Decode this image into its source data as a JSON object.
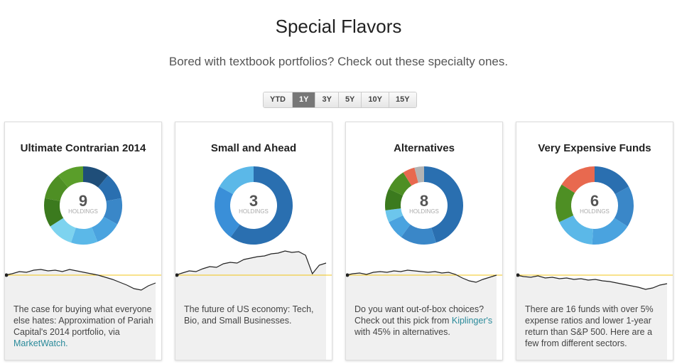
{
  "header": {
    "title": "Special Flavors",
    "subtitle": "Bored with textbook portfolios? Check out these specialty ones."
  },
  "periods": {
    "options": [
      "YTD",
      "1Y",
      "3Y",
      "5Y",
      "10Y",
      "15Y"
    ],
    "selected": 1
  },
  "sparkline_ylim": [
    -24,
    36
  ],
  "cards": [
    {
      "title": "Ultimate Contrarian 2014",
      "holdings": 9,
      "holdings_label": "HOLDINGS",
      "segments": [
        {
          "value": 11,
          "color": "#1f4e79"
        },
        {
          "value": 11,
          "color": "#2a6fb0"
        },
        {
          "value": 11,
          "color": "#3a87c8"
        },
        {
          "value": 11,
          "color": "#4aa3df"
        },
        {
          "value": 11,
          "color": "#5bb8e8"
        },
        {
          "value": 11,
          "color": "#7dd3ef"
        },
        {
          "value": 12,
          "color": "#3b7a1e"
        },
        {
          "value": 11,
          "color": "#4e8f24"
        },
        {
          "value": 11,
          "color": "#5a9e2a"
        }
      ],
      "sparkline": [
        0,
        2,
        5,
        4,
        7,
        8,
        6,
        7,
        5,
        8,
        6,
        4,
        2,
        0,
        -3,
        -6,
        -10,
        -14,
        -19,
        -21,
        -15,
        -11
      ],
      "description": [
        {
          "text": "The case for buying what everyone else hates: Approximation of Pariah Capital's 2014 portfolio, via "
        },
        {
          "text": "MarketWatch.",
          "link": true
        }
      ]
    },
    {
      "title": "Small and Ahead",
      "holdings": 3,
      "holdings_label": "HOLDINGS",
      "segments": [
        {
          "value": 60,
          "color": "#2a6fb0"
        },
        {
          "value": 23,
          "color": "#3a8fd8"
        },
        {
          "value": 17,
          "color": "#5bb8e8"
        }
      ],
      "sparkline": [
        0,
        3,
        6,
        5,
        9,
        12,
        11,
        16,
        18,
        17,
        22,
        24,
        26,
        27,
        30,
        31,
        34,
        32,
        33,
        28,
        2,
        14,
        17
      ],
      "description": [
        {
          "text": "The future of US economy: Tech, Bio, and Small Businesses."
        }
      ]
    },
    {
      "title": "Alternatives",
      "holdings": 8,
      "holdings_label": "HOLDINGS",
      "segments": [
        {
          "value": 45,
          "color": "#2a6fb0"
        },
        {
          "value": 15,
          "color": "#3a87c8"
        },
        {
          "value": 8,
          "color": "#4aa3df"
        },
        {
          "value": 5,
          "color": "#6cc6ec"
        },
        {
          "value": 9,
          "color": "#3b7a1e"
        },
        {
          "value": 9,
          "color": "#4e8f24"
        },
        {
          "value": 5,
          "color": "#e8694f"
        },
        {
          "value": 4,
          "color": "#b4b4b4"
        }
      ],
      "sparkline": [
        0,
        2,
        3,
        1,
        4,
        5,
        4,
        6,
        5,
        7,
        6,
        5,
        4,
        5,
        3,
        4,
        1,
        -4,
        -8,
        -10,
        -6,
        -3,
        0
      ],
      "description": [
        {
          "text": "Do you want out-of-box choices? Check out this pick from "
        },
        {
          "text": "Kiplinger's",
          "link": true
        },
        {
          "text": " with 45% in alternatives."
        }
      ]
    },
    {
      "title": "Very Expensive Funds",
      "holdings": 6,
      "holdings_label": "HOLDINGS",
      "segments": [
        {
          "value": 17,
          "color": "#2a6fb0"
        },
        {
          "value": 17,
          "color": "#3a87c8"
        },
        {
          "value": 17,
          "color": "#4aa3df"
        },
        {
          "value": 17,
          "color": "#5bb8e8"
        },
        {
          "value": 16,
          "color": "#4e8f24"
        },
        {
          "value": 16,
          "color": "#e8694f"
        }
      ],
      "sparkline": [
        0,
        -2,
        -3,
        -1,
        -4,
        -3,
        -5,
        -4,
        -6,
        -5,
        -7,
        -6,
        -8,
        -9,
        -11,
        -13,
        -15,
        -17,
        -20,
        -18,
        -14,
        -12
      ],
      "description": [
        {
          "text": "There are 16 funds with over 5% expense ratios and lower 1-year return than S&P 500. Here are a few from different sectors."
        }
      ]
    }
  ]
}
